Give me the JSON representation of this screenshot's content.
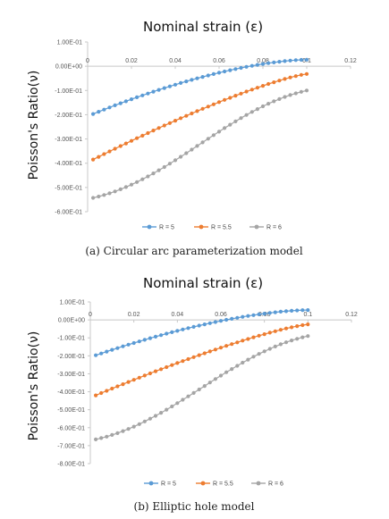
{
  "chart_data": [
    {
      "type": "scatter",
      "title": "Nominal strain (ε)",
      "ylabel": "Poisson's Ratio(ν)",
      "xlim": [
        0,
        0.12
      ],
      "ylim": [
        -0.6,
        0.1
      ],
      "x_ticks": [
        "0",
        "0.02",
        "0.04",
        "0.06",
        "0.08",
        "0.1",
        "0.12"
      ],
      "y_ticks": [
        "1.00E-01",
        "0.00E+00",
        "-1.00E-01",
        "-2.00E-01",
        "-3.00E-01",
        "-4.00E-01",
        "-5.00E-01",
        "-6.00E-01"
      ],
      "series": [
        {
          "name": "R = 5",
          "color": "#5B9BD5",
          "x_range": [
            0.0025,
            0.1
          ],
          "points": 40,
          "y_start": -0.197,
          "y_end": 0.027
        },
        {
          "name": "R = 5.5",
          "color": "#ED7D31",
          "x_range": [
            0.0025,
            0.1
          ],
          "points": 40,
          "y_start": -0.385,
          "y_end": -0.032
        },
        {
          "name": "R = 6",
          "color": "#A5A5A5",
          "x_range": [
            0.0025,
            0.1
          ],
          "points": 40,
          "y_start": -0.543,
          "y_end": -0.1
        }
      ],
      "legend_position": "bottom",
      "grid": false,
      "caption": "(a)  Circular arc parameterization model"
    },
    {
      "type": "scatter",
      "title": "Nominal strain (ε)",
      "ylabel": "Poisson's Ratio(ν)",
      "xlim": [
        0,
        0.12
      ],
      "ylim": [
        -0.8,
        0.1
      ],
      "x_ticks": [
        "0",
        "0.02",
        "0.04",
        "0.06",
        "0.08",
        "0.1",
        "0.12"
      ],
      "y_ticks": [
        "1.00E-01",
        "0.00E+00",
        "-1.00E-01",
        "-2.00E-01",
        "-3.00E-01",
        "-4.00E-01",
        "-5.00E-01",
        "-6.00E-01",
        "-7.00E-01",
        "-8.00E-01"
      ],
      "series": [
        {
          "name": "R = 5",
          "color": "#5B9BD5",
          "x_range": [
            0.0025,
            0.1
          ],
          "points": 40,
          "y_start": -0.197,
          "y_end": 0.055
        },
        {
          "name": "R = 5.5",
          "color": "#ED7D31",
          "x_range": [
            0.0025,
            0.1
          ],
          "points": 40,
          "y_start": -0.42,
          "y_end": -0.025
        },
        {
          "name": "R = 6",
          "color": "#A5A5A5",
          "x_range": [
            0.0025,
            0.1
          ],
          "points": 40,
          "y_start": -0.665,
          "y_end": -0.09
        }
      ],
      "legend_position": "bottom",
      "grid": false,
      "caption": "(b)  Elliptic hole model"
    }
  ]
}
